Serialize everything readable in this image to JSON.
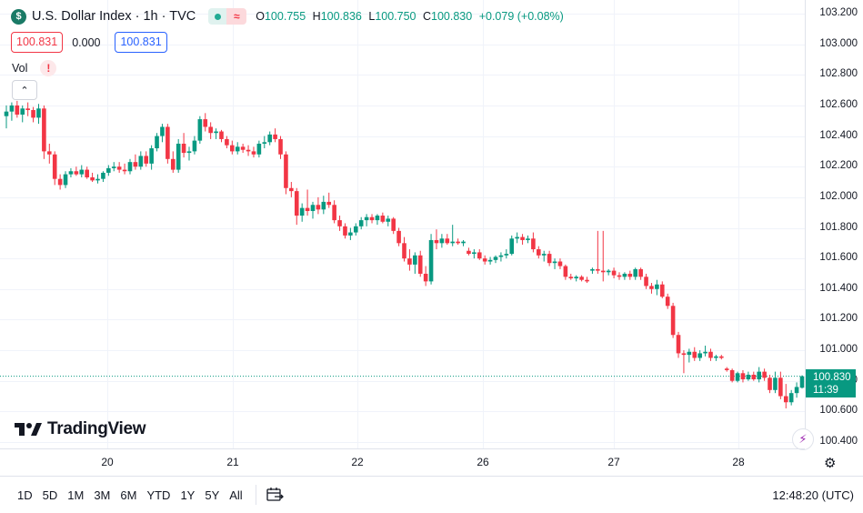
{
  "legend": {
    "symbol_logo": "$",
    "title": "U.S. Dollar Index · 1h · TVC",
    "ext_hours_symbol": "≈",
    "open_label": "O",
    "open": "100.755",
    "high_label": "H",
    "high": "100.836",
    "low_label": "L",
    "low": "100.750",
    "close_label": "C",
    "close": "100.830",
    "change": "+0.079 (+0.08%)"
  },
  "quote": {
    "sell": "100.831",
    "spread": "0.000",
    "buy": "100.831"
  },
  "volume": {
    "label": "Vol",
    "warning": "!"
  },
  "collapse_icon": "⌃",
  "price_axis": {
    "labels": [
      "103.200",
      "103.000",
      "102.800",
      "102.600",
      "102.400",
      "102.200",
      "102.000",
      "101.800",
      "101.600",
      "101.400",
      "101.200",
      "101.000",
      "100.800",
      "100.600",
      "100.400"
    ],
    "last_price": "100.830",
    "countdown": "11:39"
  },
  "time_axis": {
    "labels": [
      "20",
      "21",
      "22",
      "26",
      "27",
      "28"
    ]
  },
  "watermark": {
    "text": "TradingView"
  },
  "ranges": [
    "1D",
    "5D",
    "1M",
    "3M",
    "6M",
    "YTD",
    "1Y",
    "5Y",
    "All"
  ],
  "clock": "12:48:20 (UTC)",
  "colors": {
    "up": "#089981",
    "down": "#f23645",
    "grid": "#f0f3fa",
    "last_price_line": "#089981"
  },
  "icons": {
    "date_range": "calendar-range-icon",
    "settings": "gear-icon",
    "indicator": "lightning-icon"
  },
  "chart_data": {
    "type": "candlestick",
    "ylim": [
      100.35,
      103.25
    ],
    "x": [
      "20",
      "21",
      "22",
      "26",
      "27",
      "28"
    ],
    "last": 100.83,
    "candles": [
      {
        "o": 102.53,
        "h": 102.6,
        "l": 102.45,
        "c": 102.56
      },
      {
        "o": 102.56,
        "h": 102.62,
        "l": 102.5,
        "c": 102.6
      },
      {
        "o": 102.6,
        "h": 102.63,
        "l": 102.52,
        "c": 102.54
      },
      {
        "o": 102.54,
        "h": 102.6,
        "l": 102.49,
        "c": 102.58
      },
      {
        "o": 102.58,
        "h": 102.62,
        "l": 102.53,
        "c": 102.57
      },
      {
        "o": 102.57,
        "h": 102.59,
        "l": 102.49,
        "c": 102.52
      },
      {
        "o": 102.52,
        "h": 102.61,
        "l": 102.48,
        "c": 102.58
      },
      {
        "o": 102.58,
        "h": 102.6,
        "l": 102.25,
        "c": 102.3
      },
      {
        "o": 102.3,
        "h": 102.35,
        "l": 102.22,
        "c": 102.28
      },
      {
        "o": 102.28,
        "h": 102.3,
        "l": 102.08,
        "c": 102.12
      },
      {
        "o": 102.12,
        "h": 102.15,
        "l": 102.05,
        "c": 102.08
      },
      {
        "o": 102.08,
        "h": 102.17,
        "l": 102.06,
        "c": 102.15
      },
      {
        "o": 102.15,
        "h": 102.19,
        "l": 102.13,
        "c": 102.17
      },
      {
        "o": 102.17,
        "h": 102.2,
        "l": 102.14,
        "c": 102.15
      },
      {
        "o": 102.15,
        "h": 102.21,
        "l": 102.13,
        "c": 102.18
      },
      {
        "o": 102.18,
        "h": 102.2,
        "l": 102.12,
        "c": 102.13
      },
      {
        "o": 102.13,
        "h": 102.16,
        "l": 102.1,
        "c": 102.11
      },
      {
        "o": 102.11,
        "h": 102.15,
        "l": 102.09,
        "c": 102.12
      },
      {
        "o": 102.12,
        "h": 102.17,
        "l": 102.1,
        "c": 102.16
      },
      {
        "o": 102.16,
        "h": 102.21,
        "l": 102.14,
        "c": 102.19
      },
      {
        "o": 102.19,
        "h": 102.23,
        "l": 102.17,
        "c": 102.2
      },
      {
        "o": 102.2,
        "h": 102.23,
        "l": 102.16,
        "c": 102.18
      },
      {
        "o": 102.18,
        "h": 102.22,
        "l": 102.15,
        "c": 102.17
      },
      {
        "o": 102.17,
        "h": 102.25,
        "l": 102.15,
        "c": 102.23
      },
      {
        "o": 102.23,
        "h": 102.28,
        "l": 102.18,
        "c": 102.2
      },
      {
        "o": 102.2,
        "h": 102.3,
        "l": 102.18,
        "c": 102.27
      },
      {
        "o": 102.27,
        "h": 102.3,
        "l": 102.2,
        "c": 102.22
      },
      {
        "o": 102.22,
        "h": 102.34,
        "l": 102.18,
        "c": 102.32
      },
      {
        "o": 102.32,
        "h": 102.42,
        "l": 102.3,
        "c": 102.4
      },
      {
        "o": 102.4,
        "h": 102.48,
        "l": 102.36,
        "c": 102.46
      },
      {
        "o": 102.46,
        "h": 102.48,
        "l": 102.22,
        "c": 102.25
      },
      {
        "o": 102.25,
        "h": 102.3,
        "l": 102.16,
        "c": 102.18
      },
      {
        "o": 102.18,
        "h": 102.38,
        "l": 102.16,
        "c": 102.35
      },
      {
        "o": 102.35,
        "h": 102.42,
        "l": 102.26,
        "c": 102.29
      },
      {
        "o": 102.29,
        "h": 102.33,
        "l": 102.24,
        "c": 102.3
      },
      {
        "o": 102.3,
        "h": 102.4,
        "l": 102.28,
        "c": 102.37
      },
      {
        "o": 102.37,
        "h": 102.53,
        "l": 102.35,
        "c": 102.51
      },
      {
        "o": 102.51,
        "h": 102.55,
        "l": 102.43,
        "c": 102.46
      },
      {
        "o": 102.46,
        "h": 102.49,
        "l": 102.38,
        "c": 102.42
      },
      {
        "o": 102.42,
        "h": 102.45,
        "l": 102.38,
        "c": 102.43
      },
      {
        "o": 102.43,
        "h": 102.44,
        "l": 102.36,
        "c": 102.38
      },
      {
        "o": 102.38,
        "h": 102.4,
        "l": 102.32,
        "c": 102.34
      },
      {
        "o": 102.34,
        "h": 102.37,
        "l": 102.28,
        "c": 102.3
      },
      {
        "o": 102.3,
        "h": 102.36,
        "l": 102.28,
        "c": 102.33
      },
      {
        "o": 102.33,
        "h": 102.35,
        "l": 102.29,
        "c": 102.31
      },
      {
        "o": 102.31,
        "h": 102.34,
        "l": 102.27,
        "c": 102.3
      },
      {
        "o": 102.3,
        "h": 102.33,
        "l": 102.26,
        "c": 102.28
      },
      {
        "o": 102.28,
        "h": 102.37,
        "l": 102.26,
        "c": 102.35
      },
      {
        "o": 102.35,
        "h": 102.4,
        "l": 102.32,
        "c": 102.36
      },
      {
        "o": 102.36,
        "h": 102.43,
        "l": 102.34,
        "c": 102.41
      },
      {
        "o": 102.41,
        "h": 102.45,
        "l": 102.36,
        "c": 102.38
      },
      {
        "o": 102.38,
        "h": 102.4,
        "l": 102.25,
        "c": 102.28
      },
      {
        "o": 102.28,
        "h": 102.3,
        "l": 102.02,
        "c": 102.06
      },
      {
        "o": 102.06,
        "h": 102.1,
        "l": 102.0,
        "c": 102.04
      },
      {
        "o": 102.04,
        "h": 102.06,
        "l": 101.82,
        "c": 101.88
      },
      {
        "o": 101.88,
        "h": 101.96,
        "l": 101.84,
        "c": 101.93
      },
      {
        "o": 101.93,
        "h": 102.05,
        "l": 101.88,
        "c": 101.91
      },
      {
        "o": 101.91,
        "h": 101.97,
        "l": 101.86,
        "c": 101.95
      },
      {
        "o": 101.95,
        "h": 102.0,
        "l": 101.89,
        "c": 101.92
      },
      {
        "o": 101.92,
        "h": 102.01,
        "l": 101.89,
        "c": 101.97
      },
      {
        "o": 101.97,
        "h": 102.03,
        "l": 101.93,
        "c": 101.95
      },
      {
        "o": 101.95,
        "h": 101.98,
        "l": 101.83,
        "c": 101.85
      },
      {
        "o": 101.85,
        "h": 101.88,
        "l": 101.78,
        "c": 101.81
      },
      {
        "o": 101.81,
        "h": 101.83,
        "l": 101.73,
        "c": 101.75
      },
      {
        "o": 101.75,
        "h": 101.8,
        "l": 101.72,
        "c": 101.77
      },
      {
        "o": 101.77,
        "h": 101.83,
        "l": 101.75,
        "c": 101.81
      },
      {
        "o": 101.81,
        "h": 101.87,
        "l": 101.79,
        "c": 101.85
      },
      {
        "o": 101.85,
        "h": 101.89,
        "l": 101.81,
        "c": 101.87
      },
      {
        "o": 101.87,
        "h": 101.89,
        "l": 101.83,
        "c": 101.85
      },
      {
        "o": 101.85,
        "h": 101.89,
        "l": 101.82,
        "c": 101.88
      },
      {
        "o": 101.88,
        "h": 101.9,
        "l": 101.83,
        "c": 101.84
      },
      {
        "o": 101.84,
        "h": 101.88,
        "l": 101.81,
        "c": 101.86
      },
      {
        "o": 101.86,
        "h": 101.87,
        "l": 101.76,
        "c": 101.78
      },
      {
        "o": 101.78,
        "h": 101.8,
        "l": 101.68,
        "c": 101.7
      },
      {
        "o": 101.7,
        "h": 101.74,
        "l": 101.58,
        "c": 101.6
      },
      {
        "o": 101.6,
        "h": 101.66,
        "l": 101.52,
        "c": 101.56
      },
      {
        "o": 101.56,
        "h": 101.64,
        "l": 101.5,
        "c": 101.62
      },
      {
        "o": 101.62,
        "h": 101.65,
        "l": 101.48,
        "c": 101.5
      },
      {
        "o": 101.5,
        "h": 101.55,
        "l": 101.42,
        "c": 101.45
      },
      {
        "o": 101.45,
        "h": 101.76,
        "l": 101.43,
        "c": 101.72
      },
      {
        "o": 101.72,
        "h": 101.79,
        "l": 101.66,
        "c": 101.7
      },
      {
        "o": 101.7,
        "h": 101.76,
        "l": 101.67,
        "c": 101.73
      },
      {
        "o": 101.73,
        "h": 101.76,
        "l": 101.69,
        "c": 101.7
      },
      {
        "o": 101.7,
        "h": 101.82,
        "l": 101.68,
        "c": 101.71
      },
      {
        "o": 101.71,
        "h": 101.73,
        "l": 101.69,
        "c": 101.7
      },
      {
        "o": 101.7,
        "h": 101.72,
        "l": 101.68,
        "c": 101.71
      },
      {
        "o": 101.65,
        "h": 101.67,
        "l": 101.62,
        "c": 101.63
      },
      {
        "o": 101.63,
        "h": 101.66,
        "l": 101.6,
        "c": 101.64
      },
      {
        "o": 101.64,
        "h": 101.66,
        "l": 101.59,
        "c": 101.6
      },
      {
        "o": 101.6,
        "h": 101.62,
        "l": 101.56,
        "c": 101.58
      },
      {
        "o": 101.58,
        "h": 101.61,
        "l": 101.56,
        "c": 101.59
      },
      {
        "o": 101.59,
        "h": 101.62,
        "l": 101.57,
        "c": 101.61
      },
      {
        "o": 101.61,
        "h": 101.64,
        "l": 101.58,
        "c": 101.62
      },
      {
        "o": 101.62,
        "h": 101.66,
        "l": 101.6,
        "c": 101.63
      },
      {
        "o": 101.63,
        "h": 101.75,
        "l": 101.62,
        "c": 101.73
      },
      {
        "o": 101.73,
        "h": 101.77,
        "l": 101.7,
        "c": 101.74
      },
      {
        "o": 101.74,
        "h": 101.76,
        "l": 101.69,
        "c": 101.72
      },
      {
        "o": 101.72,
        "h": 101.75,
        "l": 101.7,
        "c": 101.73
      },
      {
        "o": 101.73,
        "h": 101.77,
        "l": 101.64,
        "c": 101.66
      },
      {
        "o": 101.66,
        "h": 101.68,
        "l": 101.6,
        "c": 101.62
      },
      {
        "o": 101.62,
        "h": 101.65,
        "l": 101.58,
        "c": 101.63
      },
      {
        "o": 101.63,
        "h": 101.65,
        "l": 101.55,
        "c": 101.57
      },
      {
        "o": 101.57,
        "h": 101.6,
        "l": 101.53,
        "c": 101.58
      },
      {
        "o": 101.58,
        "h": 101.6,
        "l": 101.53,
        "c": 101.55
      },
      {
        "o": 101.55,
        "h": 101.56,
        "l": 101.46,
        "c": 101.48
      },
      {
        "o": 101.48,
        "h": 101.5,
        "l": 101.46,
        "c": 101.47
      },
      {
        "o": 101.47,
        "h": 101.49,
        "l": 101.45,
        "c": 101.48
      },
      {
        "o": 101.48,
        "h": 101.49,
        "l": 101.45,
        "c": 101.46
      },
      {
        "o": 101.46,
        "h": 101.48,
        "l": 101.44,
        "c": 101.45
      },
      {
        "o": 101.52,
        "h": 101.54,
        "l": 101.5,
        "c": 101.53
      },
      {
        "o": 101.53,
        "h": 101.78,
        "l": 101.5,
        "c": 101.52
      },
      {
        "o": 101.52,
        "h": 101.78,
        "l": 101.45,
        "c": 101.51
      },
      {
        "o": 101.51,
        "h": 101.53,
        "l": 101.49,
        "c": 101.52
      },
      {
        "o": 101.52,
        "h": 101.54,
        "l": 101.47,
        "c": 101.49
      },
      {
        "o": 101.49,
        "h": 101.51,
        "l": 101.46,
        "c": 101.48
      },
      {
        "o": 101.48,
        "h": 101.51,
        "l": 101.46,
        "c": 101.5
      },
      {
        "o": 101.5,
        "h": 101.52,
        "l": 101.46,
        "c": 101.48
      },
      {
        "o": 101.48,
        "h": 101.54,
        "l": 101.46,
        "c": 101.53
      },
      {
        "o": 101.53,
        "h": 101.54,
        "l": 101.46,
        "c": 101.48
      },
      {
        "o": 101.48,
        "h": 101.5,
        "l": 101.4,
        "c": 101.42
      },
      {
        "o": 101.42,
        "h": 101.44,
        "l": 101.37,
        "c": 101.4
      },
      {
        "o": 101.4,
        "h": 101.46,
        "l": 101.36,
        "c": 101.43
      },
      {
        "o": 101.43,
        "h": 101.45,
        "l": 101.34,
        "c": 101.35
      },
      {
        "o": 101.35,
        "h": 101.37,
        "l": 101.27,
        "c": 101.29
      },
      {
        "o": 101.29,
        "h": 101.31,
        "l": 101.08,
        "c": 101.1
      },
      {
        "o": 101.1,
        "h": 101.12,
        "l": 100.95,
        "c": 100.98
      },
      {
        "o": 100.98,
        "h": 101.0,
        "l": 100.85,
        "c": 100.97
      },
      {
        "o": 100.97,
        "h": 101.01,
        "l": 100.92,
        "c": 100.99
      },
      {
        "o": 100.99,
        "h": 101.02,
        "l": 100.93,
        "c": 100.95
      },
      {
        "o": 100.95,
        "h": 101.0,
        "l": 100.93,
        "c": 100.98
      },
      {
        "o": 100.98,
        "h": 101.03,
        "l": 100.96,
        "c": 100.99
      },
      {
        "o": 100.99,
        "h": 101.01,
        "l": 100.93,
        "c": 100.95
      },
      {
        "o": 100.95,
        "h": 100.97,
        "l": 100.93,
        "c": 100.96
      },
      {
        "o": 100.96,
        "h": 100.97,
        "l": 100.94,
        "c": 100.95
      },
      {
        "o": 100.88,
        "h": 100.89,
        "l": 100.86,
        "c": 100.87
      },
      {
        "o": 100.87,
        "h": 100.88,
        "l": 100.79,
        "c": 100.8
      },
      {
        "o": 100.8,
        "h": 100.86,
        "l": 100.79,
        "c": 100.85
      },
      {
        "o": 100.85,
        "h": 100.87,
        "l": 100.79,
        "c": 100.81
      },
      {
        "o": 100.81,
        "h": 100.86,
        "l": 100.8,
        "c": 100.84
      },
      {
        "o": 100.84,
        "h": 100.86,
        "l": 100.8,
        "c": 100.81
      },
      {
        "o": 100.81,
        "h": 100.89,
        "l": 100.79,
        "c": 100.86
      },
      {
        "o": 100.86,
        "h": 100.88,
        "l": 100.8,
        "c": 100.82
      },
      {
        "o": 100.82,
        "h": 100.84,
        "l": 100.72,
        "c": 100.74
      },
      {
        "o": 100.74,
        "h": 100.86,
        "l": 100.72,
        "c": 100.82
      },
      {
        "o": 100.82,
        "h": 100.86,
        "l": 100.68,
        "c": 100.7
      },
      {
        "o": 100.7,
        "h": 100.78,
        "l": 100.62,
        "c": 100.66
      },
      {
        "o": 100.66,
        "h": 100.74,
        "l": 100.64,
        "c": 100.72
      },
      {
        "o": 100.72,
        "h": 100.79,
        "l": 100.69,
        "c": 100.76
      },
      {
        "o": 100.755,
        "h": 100.836,
        "l": 100.75,
        "c": 100.83
      }
    ]
  }
}
